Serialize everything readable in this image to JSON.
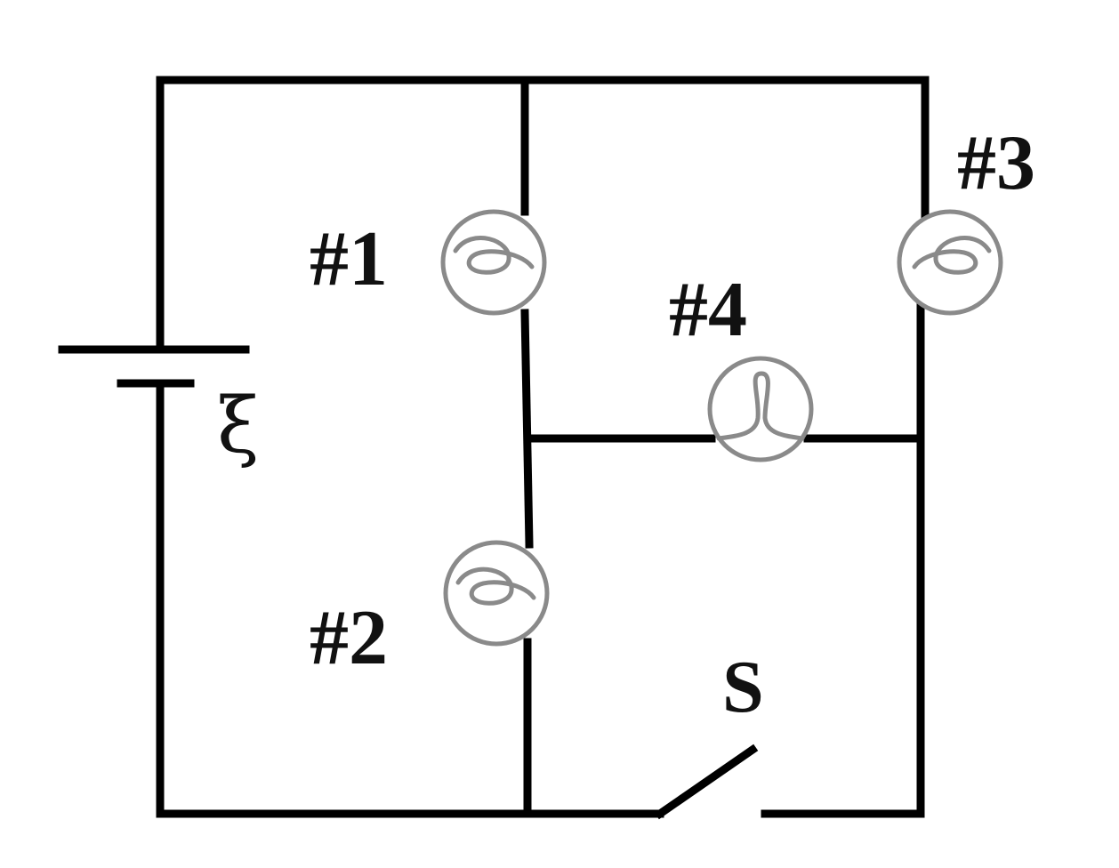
{
  "diagram": {
    "battery_label": "ξ",
    "bulbs": [
      {
        "id": "1",
        "label": "#1"
      },
      {
        "id": "2",
        "label": "#2"
      },
      {
        "id": "3",
        "label": "#3"
      },
      {
        "id": "4",
        "label": "#4"
      }
    ],
    "switch_label": "S"
  }
}
